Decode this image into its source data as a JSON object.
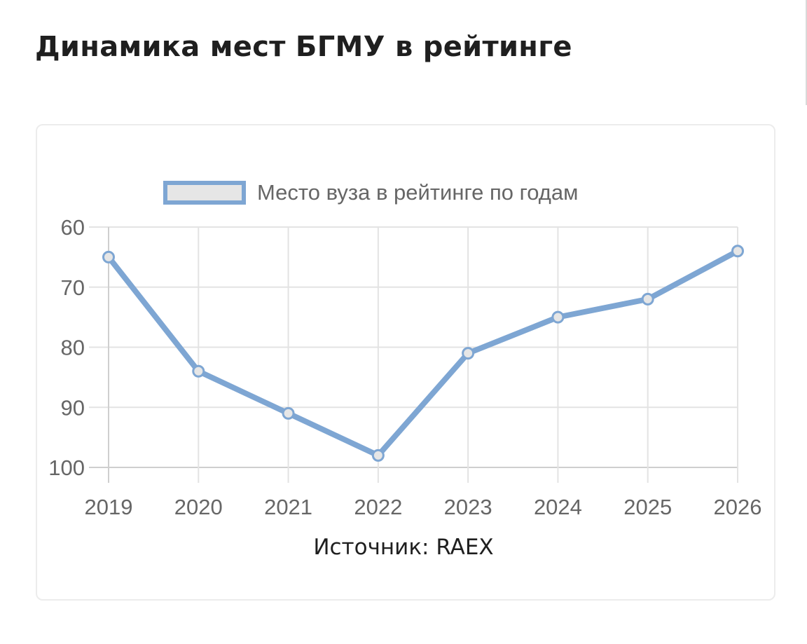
{
  "page": {
    "title": "Динамика мест БГМУ в рейтинге"
  },
  "chart_data": {
    "type": "line",
    "categories": [
      "2019",
      "2020",
      "2021",
      "2022",
      "2023",
      "2024",
      "2025",
      "2026"
    ],
    "series": [
      {
        "name": "Место вуза в рейтинге по годам",
        "values": [
          65,
          84,
          91,
          98,
          81,
          75,
          72,
          64
        ]
      }
    ],
    "y_ticks": [
      "60",
      "70",
      "80",
      "90",
      "100"
    ],
    "ylim": [
      60,
      100
    ],
    "y_reversed": true,
    "grid": true,
    "legend_position": "top-center",
    "line_color": "#7ea6d3",
    "legend_fill_color": "#e6e6e6"
  },
  "source": "Источник: RAEX"
}
